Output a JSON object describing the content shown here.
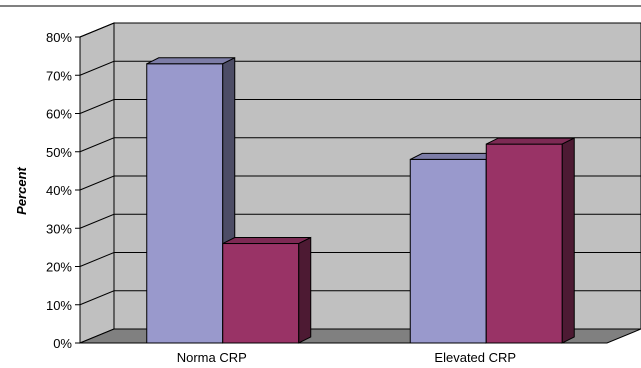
{
  "chart_data": {
    "type": "bar",
    "style": "3d-clustered",
    "categories": [
      "Norma CRP",
      "Elevated CRP"
    ],
    "series": [
      {
        "values": [
          73,
          48
        ],
        "color": "#9999CC"
      },
      {
        "values": [
          26,
          52
        ],
        "color": "#993366"
      }
    ],
    "ylabel": "Percent",
    "ylim": [
      0,
      80
    ],
    "yticks": [
      "0%",
      "10%",
      "20%",
      "30%",
      "40%",
      "50%",
      "60%",
      "70%",
      "80%"
    ],
    "grid": true,
    "legend": "none",
    "colors": {
      "wall": "#C0C0C0",
      "floor": "#808080",
      "gridline": "#000000"
    }
  }
}
